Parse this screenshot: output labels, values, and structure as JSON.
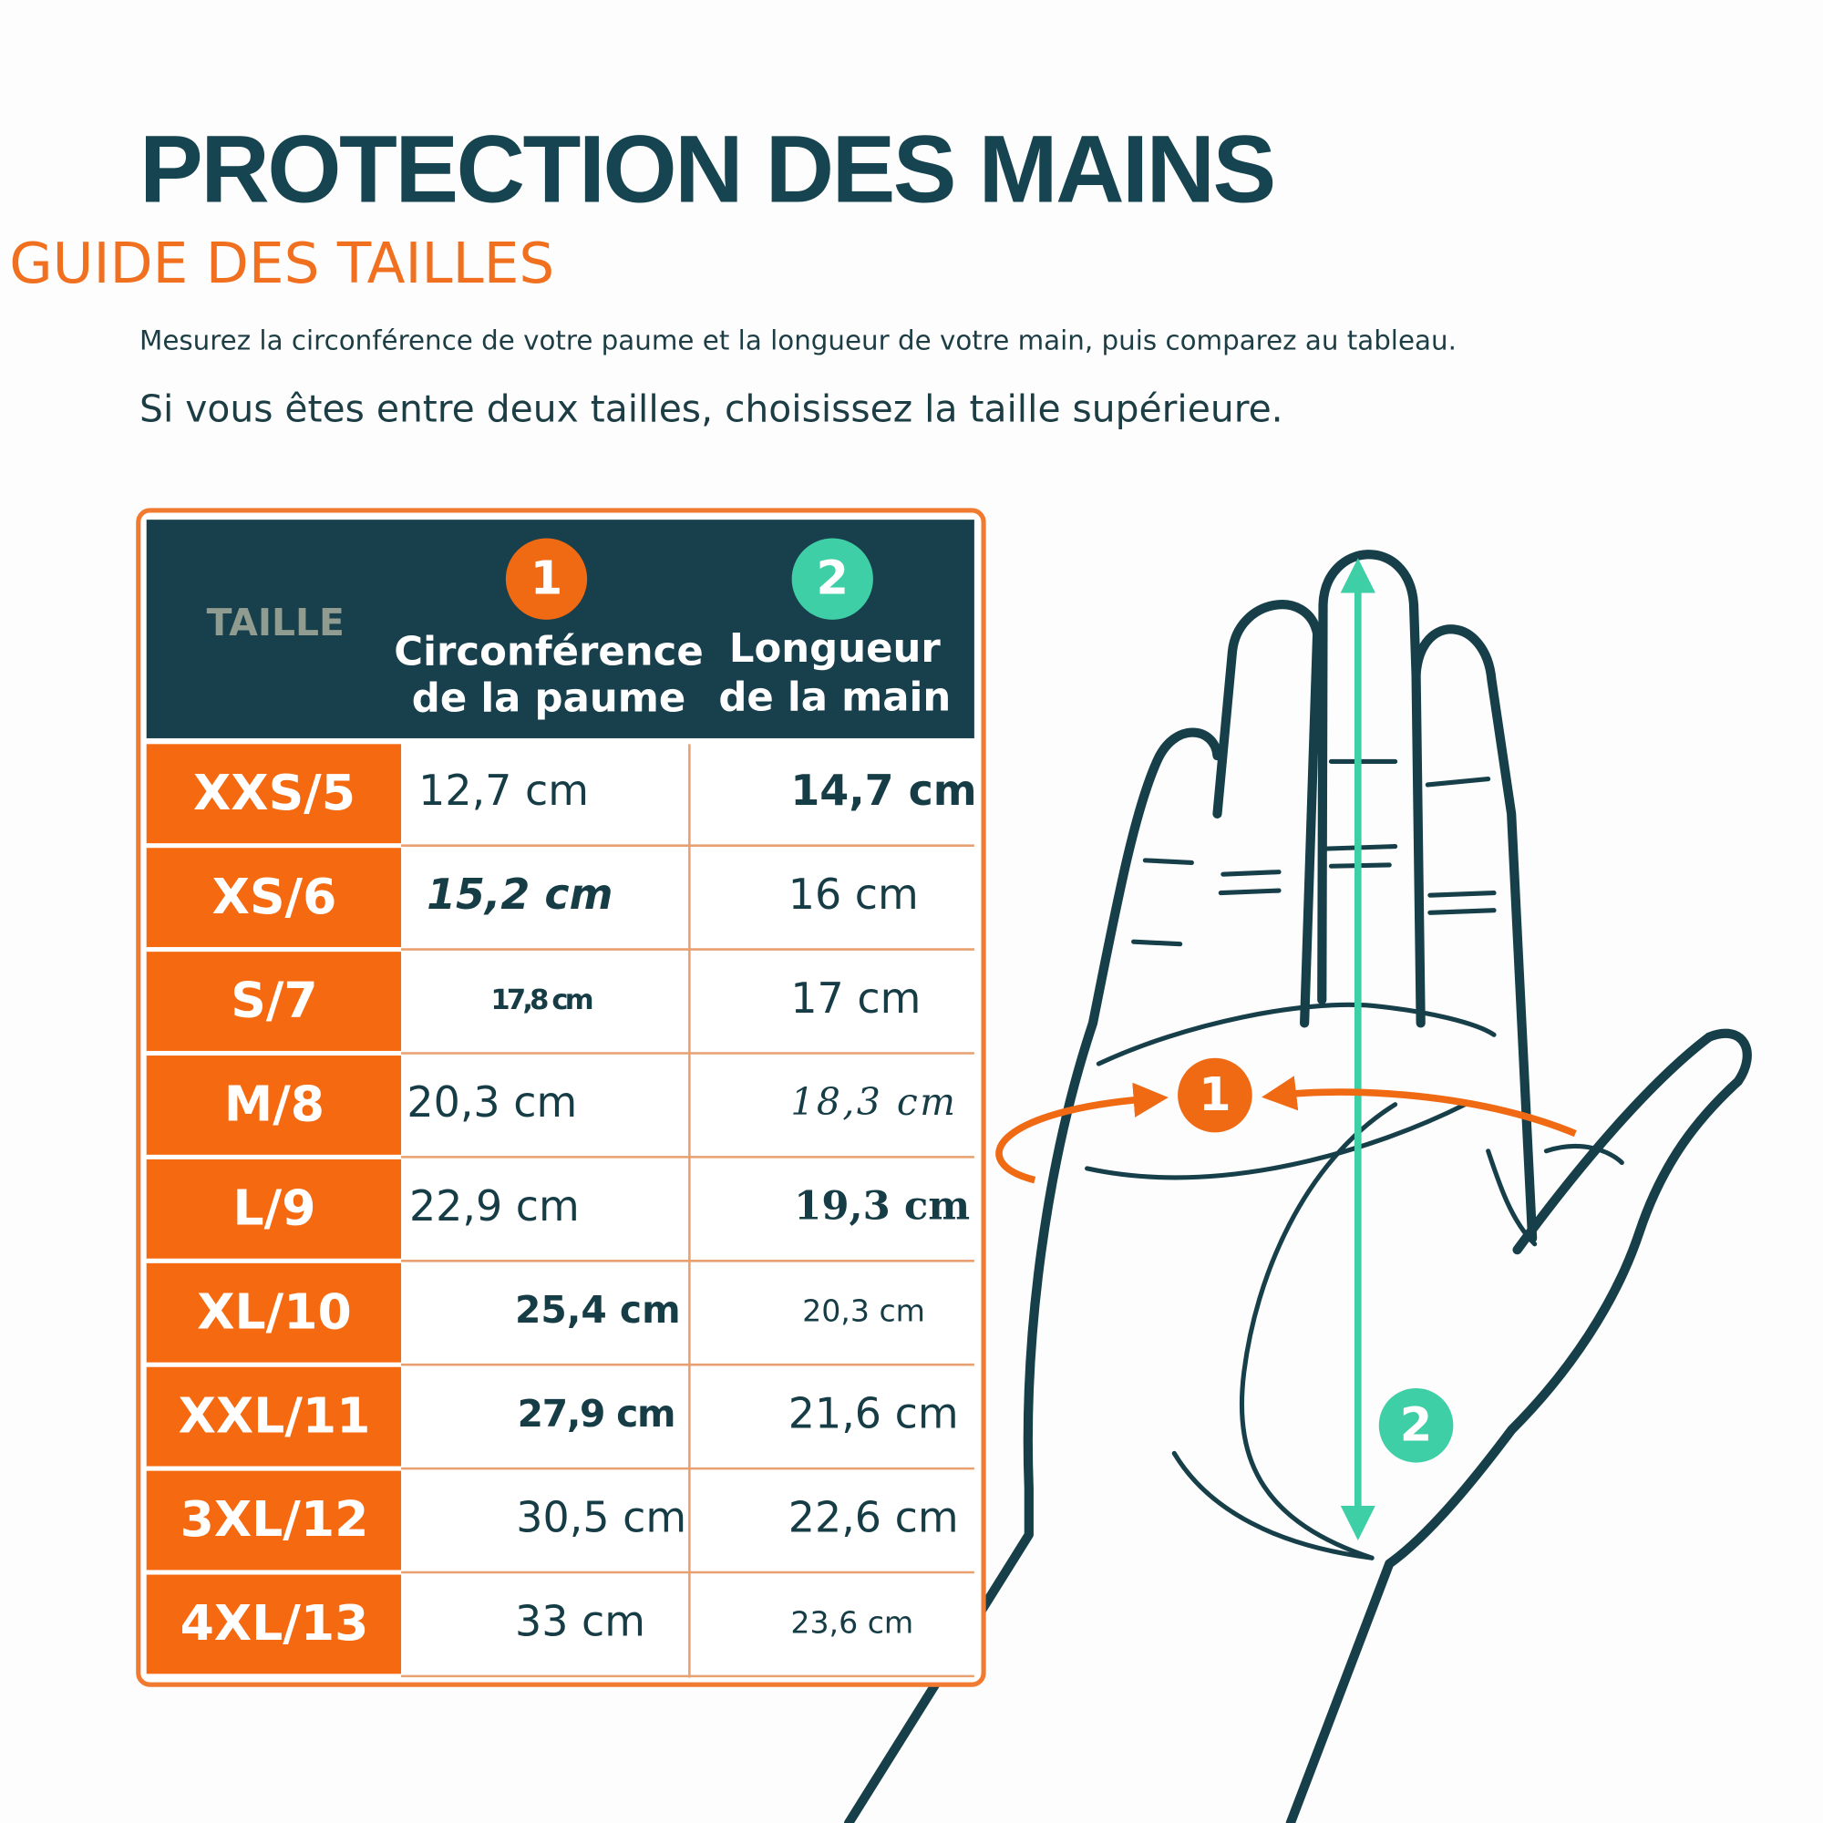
{
  "header": {
    "title": "PROTECTION DES MAINS",
    "subtitle": "GUIDE DES TAILLES",
    "instructions": [
      "Mesurez la circonférence de votre paume et la longueur de votre main, puis comparez au tableau.",
      "Si vous êtes entre deux tailles, choisissez la taille supérieure."
    ]
  },
  "table": {
    "header": {
      "size": "TAILLE",
      "palm": {
        "badge": "1",
        "lines": [
          "Circonférence",
          "de la paume"
        ]
      },
      "length": {
        "badge": "2",
        "lines": [
          "Longueur",
          "de la main"
        ]
      }
    },
    "rows": [
      [
        "XXS/5",
        "12,7 cm",
        "14,7 cm"
      ],
      [
        "XS/6",
        "15,2 cm",
        "16 cm"
      ],
      [
        "S/7",
        "17,8 cm",
        "17 cm"
      ],
      [
        "M/8",
        "20,3 cm",
        "18,3 cm"
      ],
      [
        "L/9",
        "22,9 cm",
        "19,3 cm"
      ],
      [
        "XL/10",
        "25,4 cm",
        "20,3 cm"
      ],
      [
        "XXL/11",
        "27,9 cm",
        "21,6 cm"
      ],
      [
        "3XL/12",
        "30,5 cm",
        "22,6 cm"
      ],
      [
        "4XL/13",
        "33 cm",
        "23,6 cm"
      ]
    ]
  },
  "diagram": {
    "markers": [
      "1",
      "2"
    ]
  }
}
